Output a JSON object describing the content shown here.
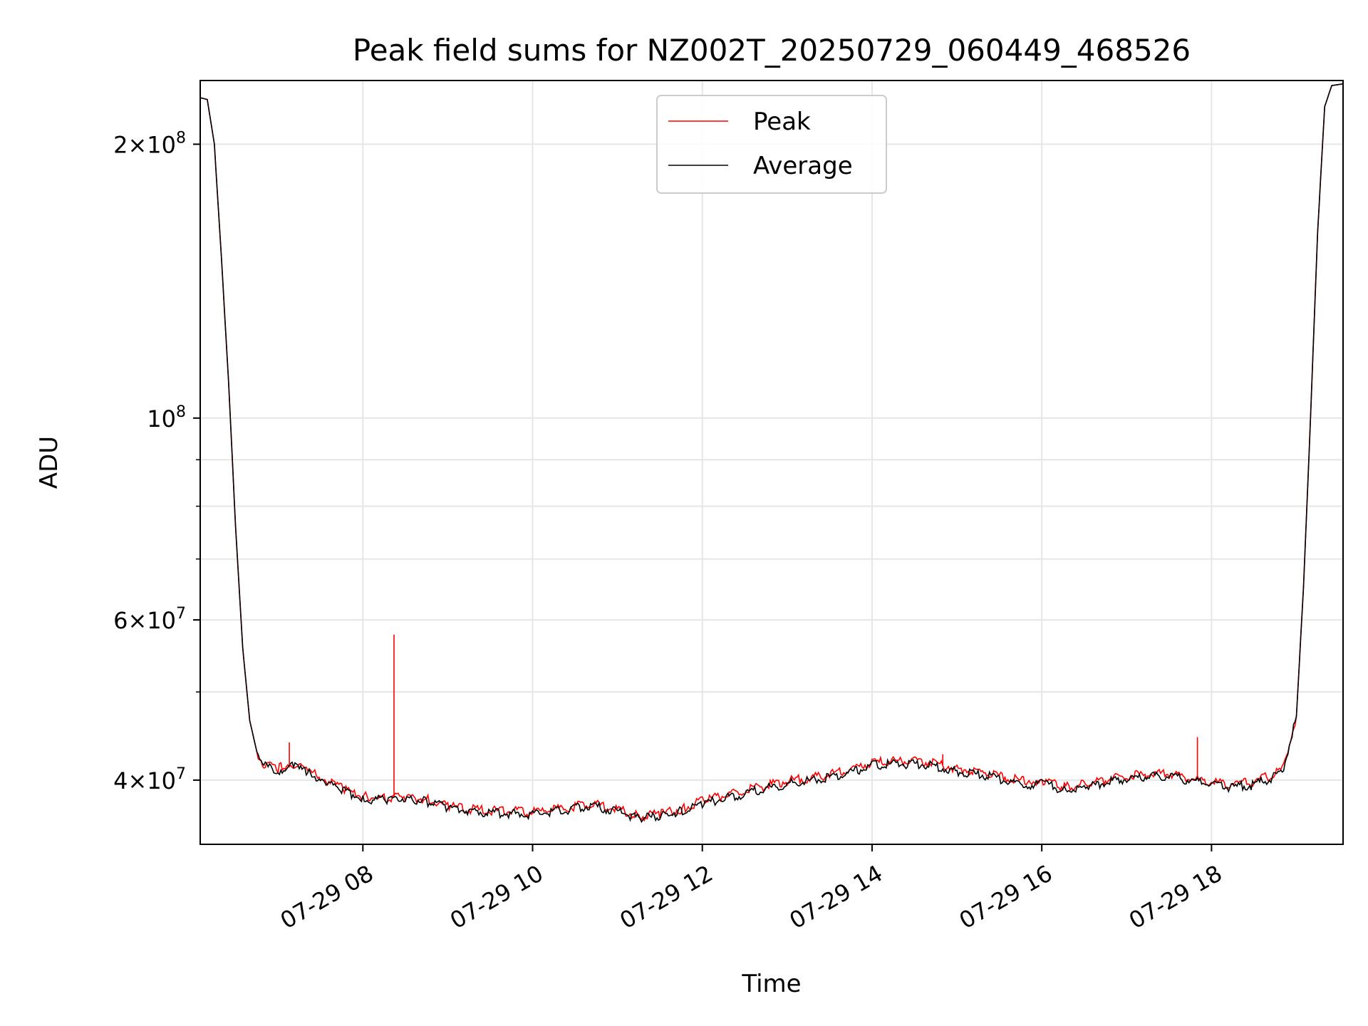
{
  "chart_data": {
    "type": "line",
    "title": "Peak field sums for NZ002T_20250729_060449_468526",
    "xlabel": "Time",
    "ylabel": "ADU",
    "y_scale": "log",
    "ylim": [
      34000000,
      235000000
    ],
    "xlim": [
      "07-29 06:05",
      "07-29 19:33"
    ],
    "grid": true,
    "legend_position": "top-center",
    "x_tick_labels": [
      "07-29 08",
      "07-29 10",
      "07-29 12",
      "07-29 14",
      "07-29 16",
      "07-29 18"
    ],
    "x_tick_hours": [
      8,
      10,
      12,
      14,
      16,
      18
    ],
    "y_major_ticks": [
      {
        "value": 40000000,
        "mant": "4",
        "exp": "7"
      },
      {
        "value": 60000000,
        "mant": "6",
        "exp": "7"
      },
      {
        "value": 100000000,
        "mant": "",
        "exp": "8"
      },
      {
        "value": 200000000,
        "mant": "2",
        "exp": "8"
      }
    ],
    "y_minor_ticks": [
      50000000,
      70000000,
      80000000,
      90000000
    ],
    "series": [
      {
        "name": "Peak",
        "color": "#ff0000",
        "points": [
          [
            "07-29 06:05",
            225000000
          ],
          [
            "07-29 06:10",
            224000000
          ],
          [
            "07-29 06:15",
            200000000
          ],
          [
            "07-29 06:20",
            150000000
          ],
          [
            "07-29 06:25",
            110000000
          ],
          [
            "07-29 06:30",
            76000000
          ],
          [
            "07-29 06:35",
            56000000
          ],
          [
            "07-29 06:40",
            46500000
          ],
          [
            "07-29 06:45",
            43000000
          ],
          [
            "07-29 06:50",
            41500000
          ],
          [
            "07-29 07:00",
            41200000
          ],
          [
            "07-29 07:10",
            41800000
          ],
          [
            "07-29 07:20",
            41000000
          ],
          [
            "07-29 07:30",
            40400000
          ],
          [
            "07-29 07:45",
            39200000
          ],
          [
            "07-29 08:00",
            38400000
          ],
          [
            "07-29 08:15",
            38200000
          ],
          [
            "07-29 08:30",
            38400000
          ],
          [
            "07-29 08:45",
            38100000
          ],
          [
            "07-29 09:00",
            37500000
          ],
          [
            "07-29 09:20",
            37100000
          ],
          [
            "07-29 09:40",
            37000000
          ],
          [
            "07-29 10:00",
            36900000
          ],
          [
            "07-29 10:20",
            37200000
          ],
          [
            "07-29 10:40",
            37700000
          ],
          [
            "07-29 11:00",
            37200000
          ],
          [
            "07-29 11:15",
            36500000
          ],
          [
            "07-29 11:30",
            36700000
          ],
          [
            "07-29 11:45",
            37200000
          ],
          [
            "07-29 12:00",
            38000000
          ],
          [
            "07-29 12:20",
            38600000
          ],
          [
            "07-29 12:40",
            39300000
          ],
          [
            "07-29 13:00",
            39900000
          ],
          [
            "07-29 13:20",
            40300000
          ],
          [
            "07-29 13:40",
            40900000
          ],
          [
            "07-29 14:00",
            41800000
          ],
          [
            "07-29 14:20",
            42000000
          ],
          [
            "07-29 14:40",
            41900000
          ],
          [
            "07-29 15:00",
            41200000
          ],
          [
            "07-29 15:20",
            40800000
          ],
          [
            "07-29 15:40",
            40100000
          ],
          [
            "07-29 15:50",
            39800000
          ],
          [
            "07-29 16:00",
            40000000
          ],
          [
            "07-29 16:15",
            39300000
          ],
          [
            "07-29 16:30",
            39600000
          ],
          [
            "07-29 16:50",
            40200000
          ],
          [
            "07-29 17:10",
            40600000
          ],
          [
            "07-29 17:30",
            40700000
          ],
          [
            "07-29 17:50",
            40100000
          ],
          [
            "07-29 18:10",
            39600000
          ],
          [
            "07-29 18:30",
            39800000
          ],
          [
            "07-29 18:50",
            41000000
          ],
          [
            "07-29 19:00",
            47000000
          ],
          [
            "07-29 19:05",
            65000000
          ],
          [
            "07-29 19:10",
            100000000
          ],
          [
            "07-29 19:15",
            160000000
          ],
          [
            "07-29 19:20",
            220000000
          ],
          [
            "07-29 19:25",
            232000000
          ],
          [
            "07-29 19:33",
            233000000
          ]
        ],
        "spikes": [
          [
            "07-29 07:08",
            44000000
          ],
          [
            "07-29 08:22",
            57800000
          ],
          [
            "07-29 14:50",
            42700000
          ],
          [
            "07-29 17:50",
            44600000
          ]
        ]
      },
      {
        "name": "Average",
        "color": "#000000",
        "points": [
          [
            "07-29 06:05",
            225000000
          ],
          [
            "07-29 06:10",
            224000000
          ],
          [
            "07-29 06:15",
            200000000
          ],
          [
            "07-29 06:20",
            150000000
          ],
          [
            "07-29 06:25",
            110000000
          ],
          [
            "07-29 06:30",
            76000000
          ],
          [
            "07-29 06:35",
            56000000
          ],
          [
            "07-29 06:40",
            46500000
          ],
          [
            "07-29 06:45",
            43000000
          ],
          [
            "07-29 06:50",
            41500000
          ],
          [
            "07-29 07:00",
            41000000
          ],
          [
            "07-29 07:10",
            41500000
          ],
          [
            "07-29 07:20",
            40800000
          ],
          [
            "07-29 07:30",
            40200000
          ],
          [
            "07-29 07:45",
            39000000
          ],
          [
            "07-29 08:00",
            38200000
          ],
          [
            "07-29 08:15",
            38000000
          ],
          [
            "07-29 08:30",
            38200000
          ],
          [
            "07-29 08:45",
            37900000
          ],
          [
            "07-29 09:00",
            37300000
          ],
          [
            "07-29 09:20",
            36900000
          ],
          [
            "07-29 09:40",
            36800000
          ],
          [
            "07-29 10:00",
            36700000
          ],
          [
            "07-29 10:20",
            37000000
          ],
          [
            "07-29 10:40",
            37500000
          ],
          [
            "07-29 11:00",
            37000000
          ],
          [
            "07-29 11:15",
            36300000
          ],
          [
            "07-29 11:30",
            36500000
          ],
          [
            "07-29 11:45",
            37000000
          ],
          [
            "07-29 12:00",
            37700000
          ],
          [
            "07-29 12:20",
            38300000
          ],
          [
            "07-29 12:40",
            39000000
          ],
          [
            "07-29 13:00",
            39600000
          ],
          [
            "07-29 13:20",
            40000000
          ],
          [
            "07-29 13:40",
            40600000
          ],
          [
            "07-29 14:00",
            41500000
          ],
          [
            "07-29 14:20",
            41700000
          ],
          [
            "07-29 14:40",
            41600000
          ],
          [
            "07-29 15:00",
            40900000
          ],
          [
            "07-29 15:20",
            40500000
          ],
          [
            "07-29 15:40",
            39800000
          ],
          [
            "07-29 15:50",
            39500000
          ],
          [
            "07-29 16:00",
            39700000
          ],
          [
            "07-29 16:15",
            39000000
          ],
          [
            "07-29 16:30",
            39300000
          ],
          [
            "07-29 16:50",
            39900000
          ],
          [
            "07-29 17:10",
            40300000
          ],
          [
            "07-29 17:30",
            40400000
          ],
          [
            "07-29 17:50",
            39800000
          ],
          [
            "07-29 18:10",
            39300000
          ],
          [
            "07-29 18:30",
            39500000
          ],
          [
            "07-29 18:50",
            40700000
          ],
          [
            "07-29 19:00",
            47000000
          ],
          [
            "07-29 19:05",
            65000000
          ],
          [
            "07-29 19:10",
            100000000
          ],
          [
            "07-29 19:15",
            160000000
          ],
          [
            "07-29 19:20",
            220000000
          ],
          [
            "07-29 19:25",
            232000000
          ],
          [
            "07-29 19:33",
            233000000
          ]
        ]
      }
    ]
  }
}
